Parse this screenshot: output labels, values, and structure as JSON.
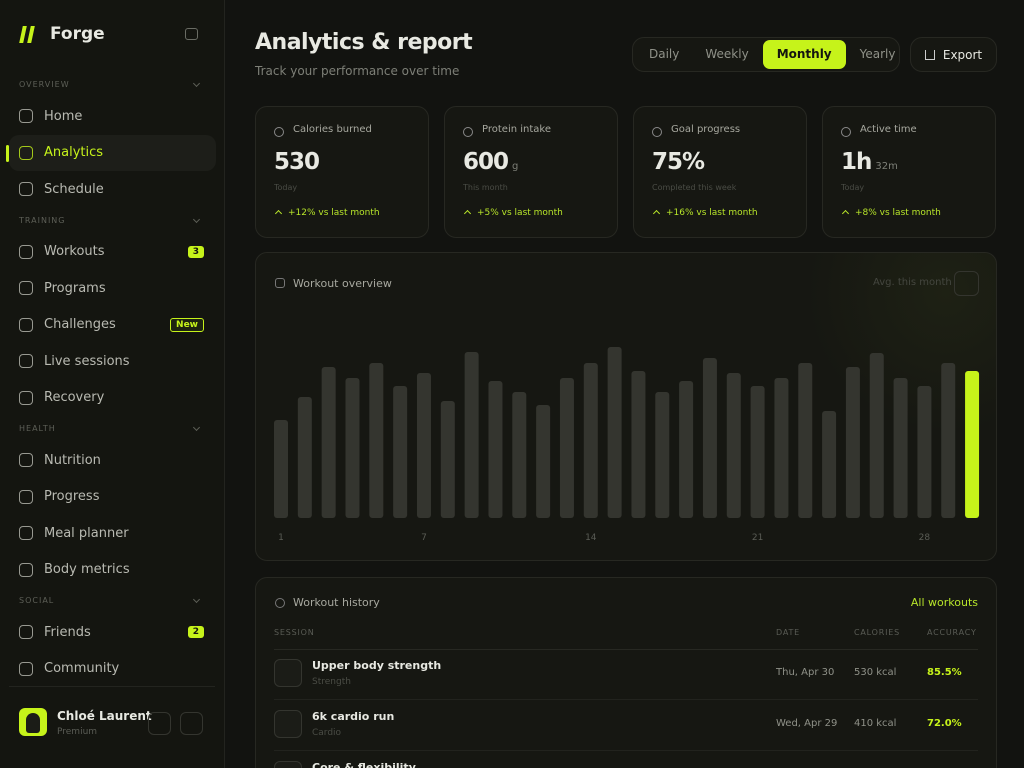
{
  "brand": "Forge",
  "nav": [
    {
      "section": "OVERVIEW",
      "items": [
        {
          "label": "Home"
        },
        {
          "label": "Analytics",
          "active": true
        },
        {
          "label": "Schedule"
        }
      ]
    },
    {
      "section": "TRAINING",
      "items": [
        {
          "label": "Workouts",
          "badge": "3"
        },
        {
          "label": "Programs"
        },
        {
          "label": "Challenges",
          "badge": "New"
        },
        {
          "label": "Live sessions"
        },
        {
          "label": "Recovery"
        }
      ]
    },
    {
      "section": "HEALTH",
      "items": [
        {
          "label": "Nutrition"
        },
        {
          "label": "Progress"
        },
        {
          "label": "Meal planner"
        },
        {
          "label": "Body metrics"
        }
      ]
    },
    {
      "section": "SOCIAL",
      "items": [
        {
          "label": "Friends",
          "badge": "2"
        },
        {
          "label": "Community"
        }
      ]
    }
  ],
  "user": {
    "name": "Chloé Laurent",
    "plan": "Premium"
  },
  "header": {
    "title": "Analytics & report",
    "subtitle": "Track your performance over time",
    "tabs": [
      "Daily",
      "Weekly",
      "Monthly",
      "Yearly"
    ],
    "active_tab": 2,
    "export": "Export"
  },
  "stats": [
    {
      "label": "Calories burned",
      "value": 530,
      "period": "Today",
      "change": "+12% vs last month"
    },
    {
      "label": "Protein intake",
      "value": 600,
      "unit": "g",
      "period": "This month",
      "change": "+5% vs last month"
    },
    {
      "label": "Goal progress",
      "value": "75%",
      "period": "Completed this week",
      "change": "+16% vs last month"
    },
    {
      "label": "Active time",
      "value": "1h",
      "unit": "32m",
      "period": "Today",
      "change": "+8% vs last month"
    }
  ],
  "chart_data": {
    "type": "bar",
    "title": "Workout overview",
    "note": "Avg. this month",
    "categories": [
      "1",
      null,
      null,
      null,
      null,
      null,
      "7",
      null,
      null,
      null,
      null,
      null,
      null,
      "14",
      null,
      null,
      null,
      null,
      null,
      null,
      "21",
      null,
      null,
      null,
      null,
      null,
      null,
      "28",
      null,
      null
    ],
    "values": [
      98,
      121,
      151,
      140,
      155,
      132,
      145,
      117,
      166,
      137,
      126,
      113,
      140,
      155,
      171,
      147,
      126,
      137,
      160,
      145,
      132,
      140,
      155,
      107,
      151,
      165,
      140,
      132,
      155,
      147
    ],
    "color": "#34352f",
    "highlight": 29,
    "highlight_color": "#c6f31a"
  },
  "history": {
    "title": "Workout history",
    "link": "All workouts",
    "columns": [
      "SESSION",
      "DATE",
      "CALORIES",
      "ACCURACY"
    ],
    "rows": [
      {
        "name": "Upper body strength",
        "type": "Strength",
        "date": "Thu, Apr 30",
        "calories": "530 kcal",
        "accuracy": "85.5%"
      },
      {
        "name": "6k cardio run",
        "type": "Cardio",
        "date": "Wed, Apr 29",
        "calories": "410 kcal",
        "accuracy": "72.0%"
      },
      {
        "name": "Core & flexibility"
      }
    ]
  }
}
